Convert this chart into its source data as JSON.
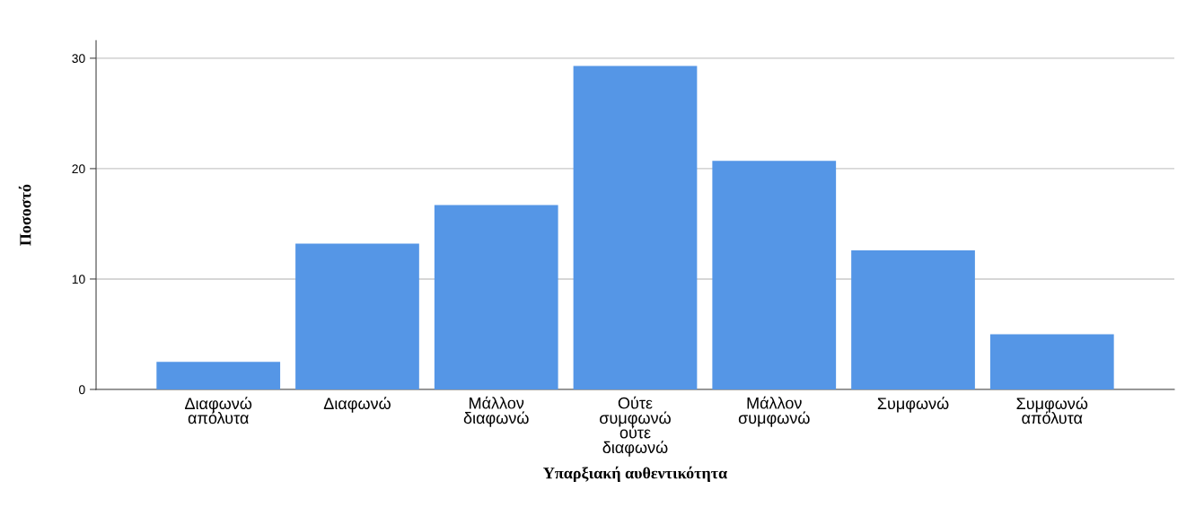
{
  "chart_data": {
    "type": "bar",
    "categories": [
      "Διαφωνώ\nαπόλυτα",
      "Διαφωνώ",
      "Μάλλον\nδιαφωνώ",
      "Ούτε\nσυμφωνώ\nούτε\nδιαφωνώ",
      "Μάλλον\nσυμφωνώ",
      "Συμφωνώ",
      "Συμφωνώ\nαπόλυτα"
    ],
    "values": [
      2.5,
      13.2,
      16.7,
      29.3,
      20.7,
      12.6,
      5.0
    ],
    "color": "#5596e6",
    "xlabel": "Υπαρξιακή αυθεντικότητα",
    "ylabel": "Ποσοστό",
    "ylim": [
      0,
      31.6
    ],
    "yticks": [
      0,
      10,
      20,
      30
    ],
    "grid": "y"
  }
}
